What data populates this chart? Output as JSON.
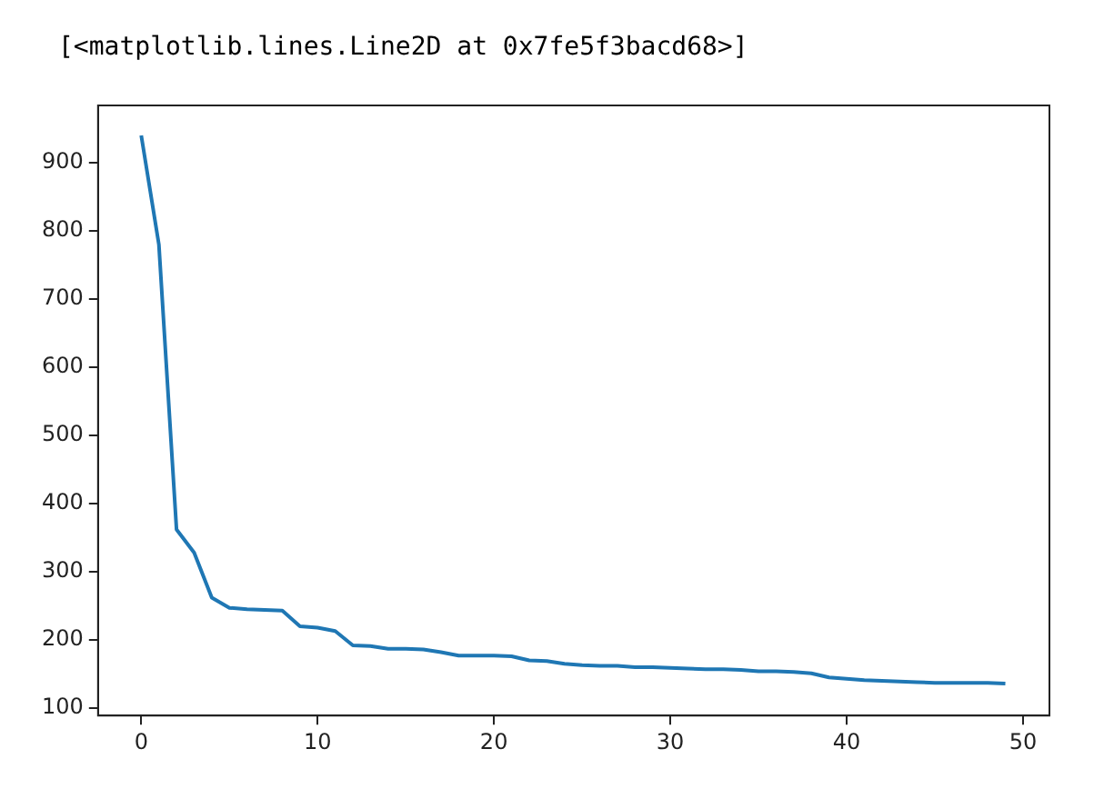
{
  "chart_data": {
    "type": "line",
    "annotations": [
      "[<matplotlib.lines.Line2D at 0x7fe5f3bacd68>]"
    ],
    "x": [
      0,
      1,
      2,
      3,
      4,
      5,
      6,
      7,
      8,
      9,
      10,
      11,
      12,
      13,
      14,
      15,
      16,
      17,
      18,
      19,
      20,
      21,
      22,
      23,
      24,
      25,
      26,
      27,
      28,
      29,
      30,
      31,
      32,
      33,
      34,
      35,
      36,
      37,
      38,
      39,
      40,
      41,
      42,
      43,
      44,
      45,
      46,
      47,
      48,
      49
    ],
    "series": [
      {
        "color": "#1f77b4",
        "values": [
          940,
          780,
          362,
          328,
          262,
          247,
          245,
          244,
          243,
          220,
          218,
          213,
          192,
          191,
          187,
          187,
          186,
          182,
          177,
          177,
          177,
          176,
          170,
          169,
          165,
          163,
          162,
          162,
          160,
          160,
          159,
          158,
          157,
          157,
          156,
          154,
          154,
          153,
          151,
          145,
          143,
          141,
          140,
          139,
          138,
          137,
          137,
          137,
          137,
          136
        ]
      }
    ],
    "xlim": [
      -2.45,
      51.5
    ],
    "xticks": [
      0,
      10,
      20,
      30,
      40,
      50
    ],
    "ylim": [
      89,
      984
    ],
    "yticks": [
      100,
      200,
      300,
      400,
      500,
      600,
      700,
      800,
      900
    ],
    "grid": false,
    "legend": false,
    "marker": "none",
    "line_style": "solid"
  }
}
